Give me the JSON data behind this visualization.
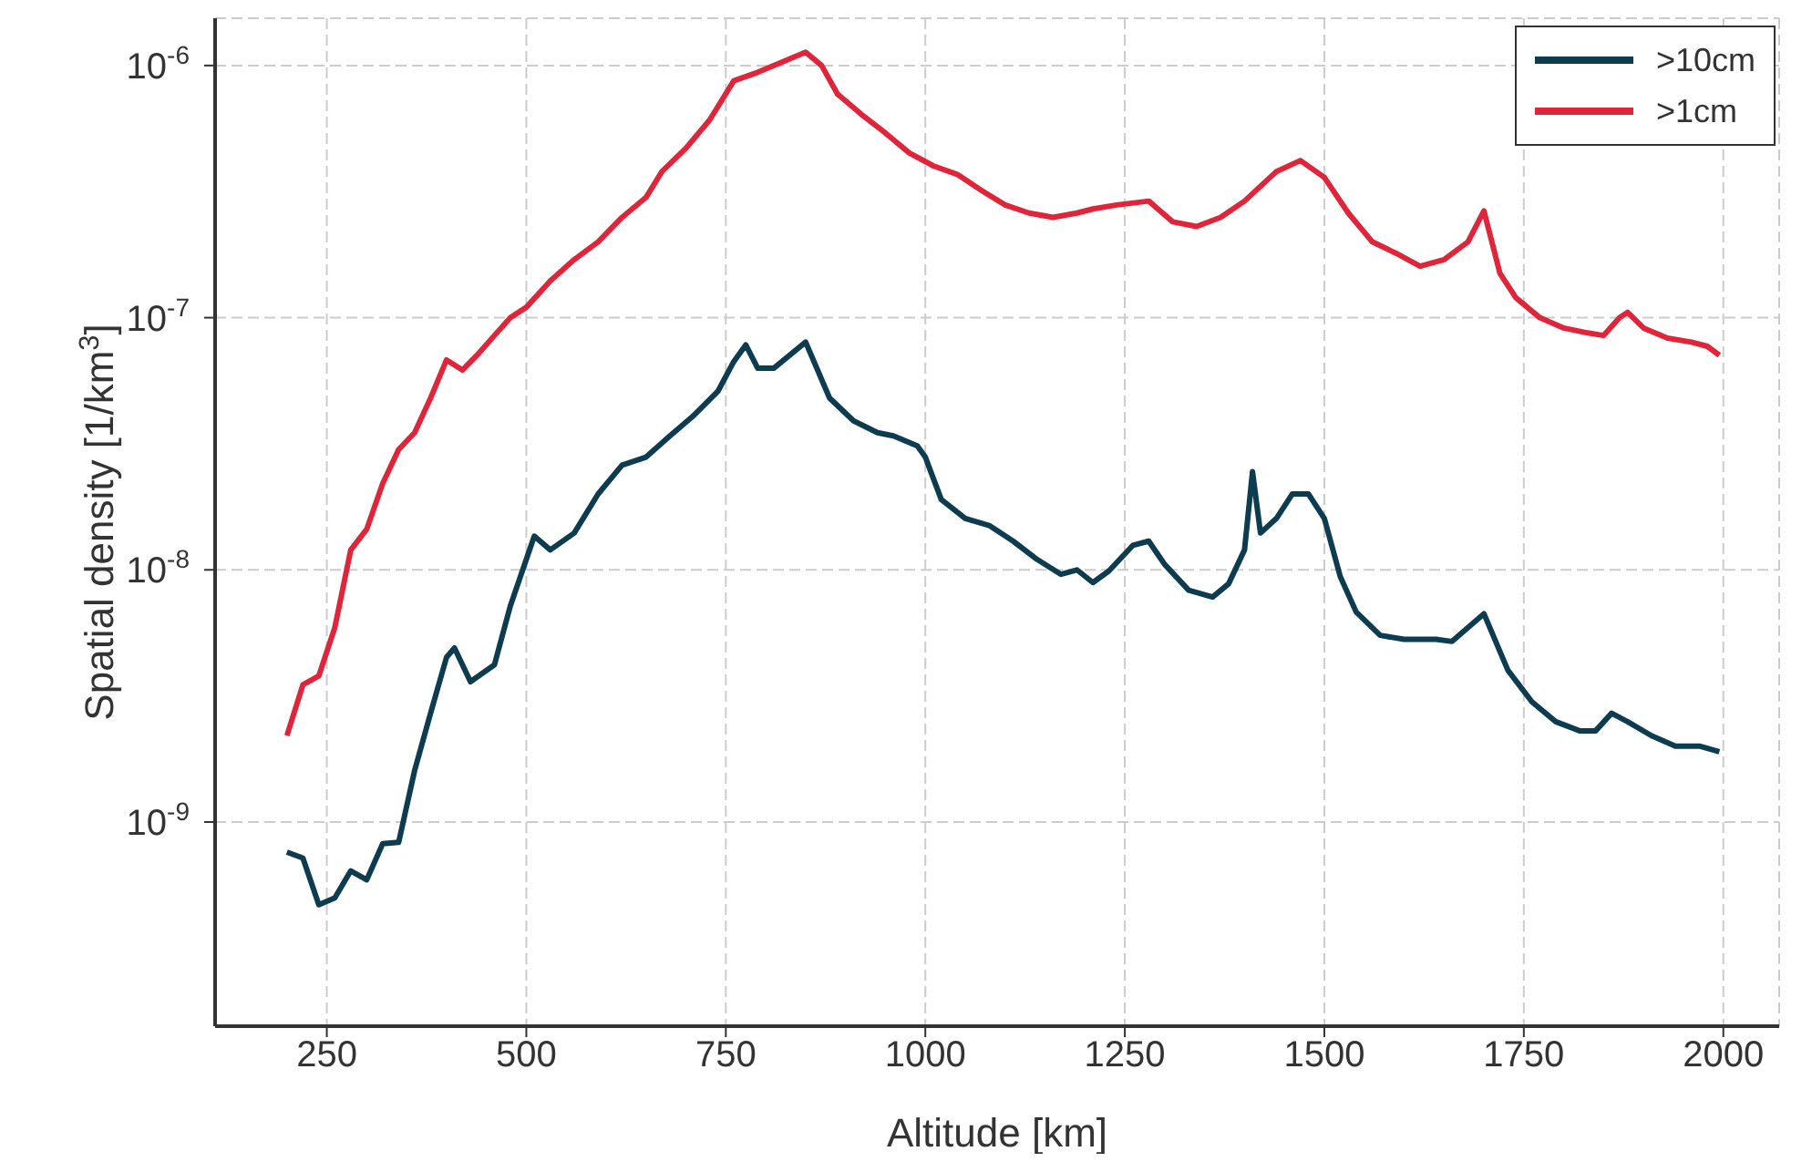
{
  "chart_data": {
    "type": "line",
    "xlabel": "Altitude [km]",
    "ylabel": "Spatial density [1/km$^{3}$]",
    "log": "y",
    "grid": true,
    "legend": "top right",
    "xlim": [
      110,
      2070
    ],
    "xticks": [
      250,
      500,
      750,
      1000,
      1250,
      1500,
      1750,
      2000
    ],
    "ylim": [
      1.55e-10,
      1.54e-06
    ],
    "yticks": [
      {
        "value": 1e-09,
        "label": "10$^{-9}$"
      },
      {
        "value": 1e-08,
        "label": "10$^{-8}$"
      },
      {
        "value": 1e-07,
        "label": "10$^{-7}$"
      },
      {
        "value": 1e-06,
        "label": "10$^{-6}$"
      }
    ],
    "marker": "none",
    "line_style": "solid",
    "series": [
      {
        "name": ">10cm",
        "color": "#0d3b4f",
        "x": [
          200,
          220,
          240,
          260,
          280,
          300,
          320,
          340,
          360,
          380,
          400,
          410,
          430,
          460,
          480,
          510,
          530,
          560,
          590,
          620,
          650,
          680,
          710,
          740,
          760,
          775,
          790,
          810,
          850,
          880,
          910,
          940,
          960,
          990,
          1000,
          1020,
          1050,
          1080,
          1110,
          1140,
          1170,
          1190,
          1210,
          1230,
          1260,
          1280,
          1300,
          1330,
          1360,
          1380,
          1400,
          1410,
          1420,
          1440,
          1460,
          1480,
          1500,
          1520,
          1540,
          1570,
          1600,
          1640,
          1660,
          1700,
          1730,
          1760,
          1790,
          1820,
          1840,
          1860,
          1880,
          1910,
          1940,
          1970,
          1995
        ],
        "values": [
          7.6e-10,
          7.2e-10,
          4.7e-10,
          5e-10,
          6.4e-10,
          5.9e-10,
          8.2e-10,
          8.3e-10,
          1.6e-09,
          2.7e-09,
          4.5e-09,
          4.9e-09,
          3.6e-09,
          4.2e-09,
          7.2e-09,
          1.36e-08,
          1.2e-08,
          1.4e-08,
          2e-08,
          2.6e-08,
          2.8e-08,
          3.4e-08,
          4.1e-08,
          5.1e-08,
          6.7e-08,
          7.8e-08,
          6.3e-08,
          6.3e-08,
          8e-08,
          4.8e-08,
          3.9e-08,
          3.5e-08,
          3.4e-08,
          3.1e-08,
          2.8e-08,
          1.9e-08,
          1.6e-08,
          1.5e-08,
          1.3e-08,
          1.1e-08,
          9.6e-09,
          1e-08,
          8.9e-09,
          9.9e-09,
          1.25e-08,
          1.3e-08,
          1.05e-08,
          8.3e-09,
          7.8e-09,
          8.8e-09,
          1.2e-08,
          2.45e-08,
          1.4e-08,
          1.6e-08,
          2e-08,
          2e-08,
          1.6e-08,
          9.4e-09,
          6.8e-09,
          5.5e-09,
          5.3e-09,
          5.3e-09,
          5.2e-09,
          6.7e-09,
          4e-09,
          3e-09,
          2.5e-09,
          2.3e-09,
          2.3e-09,
          2.7e-09,
          2.5e-09,
          2.2e-09,
          2e-09,
          2e-09,
          1.9e-09
        ]
      },
      {
        "name": ">1cm",
        "color": "#e0253a",
        "x": [
          200,
          220,
          240,
          260,
          280,
          300,
          320,
          340,
          360,
          380,
          400,
          420,
          440,
          460,
          480,
          500,
          530,
          560,
          590,
          620,
          650,
          670,
          700,
          730,
          760,
          790,
          820,
          850,
          870,
          890,
          920,
          950,
          980,
          1010,
          1040,
          1070,
          1100,
          1130,
          1160,
          1190,
          1210,
          1240,
          1280,
          1310,
          1340,
          1370,
          1400,
          1440,
          1470,
          1500,
          1530,
          1560,
          1590,
          1620,
          1650,
          1680,
          1700,
          1720,
          1740,
          1770,
          1800,
          1830,
          1850,
          1870,
          1880,
          1900,
          1930,
          1960,
          1980,
          1995
        ],
        "values": [
          2.2e-09,
          3.5e-09,
          3.8e-09,
          5.9e-09,
          1.2e-08,
          1.45e-08,
          2.2e-08,
          3e-08,
          3.5e-08,
          4.8e-08,
          6.8e-08,
          6.2e-08,
          7.2e-08,
          8.5e-08,
          1e-07,
          1.1e-07,
          1.4e-07,
          1.7e-07,
          2e-07,
          2.5e-07,
          3e-07,
          3.8e-07,
          4.7e-07,
          6.1e-07,
          8.7e-07,
          9.4e-07,
          1.03e-06,
          1.13e-06,
          1e-06,
          7.7e-07,
          6.4e-07,
          5.4e-07,
          4.5e-07,
          4e-07,
          3.7e-07,
          3.2e-07,
          2.8e-07,
          2.6e-07,
          2.5e-07,
          2.6e-07,
          2.7e-07,
          2.8e-07,
          2.9e-07,
          2.4e-07,
          2.3e-07,
          2.5e-07,
          2.9e-07,
          3.8e-07,
          4.2e-07,
          3.6e-07,
          2.6e-07,
          2e-07,
          1.8e-07,
          1.6e-07,
          1.7e-07,
          2e-07,
          2.65e-07,
          1.5e-07,
          1.2e-07,
          1e-07,
          9.1e-08,
          8.7e-08,
          8.5e-08,
          1e-07,
          1.05e-07,
          9.1e-08,
          8.3e-08,
          8e-08,
          7.7e-08,
          7.1e-08
        ]
      }
    ]
  }
}
